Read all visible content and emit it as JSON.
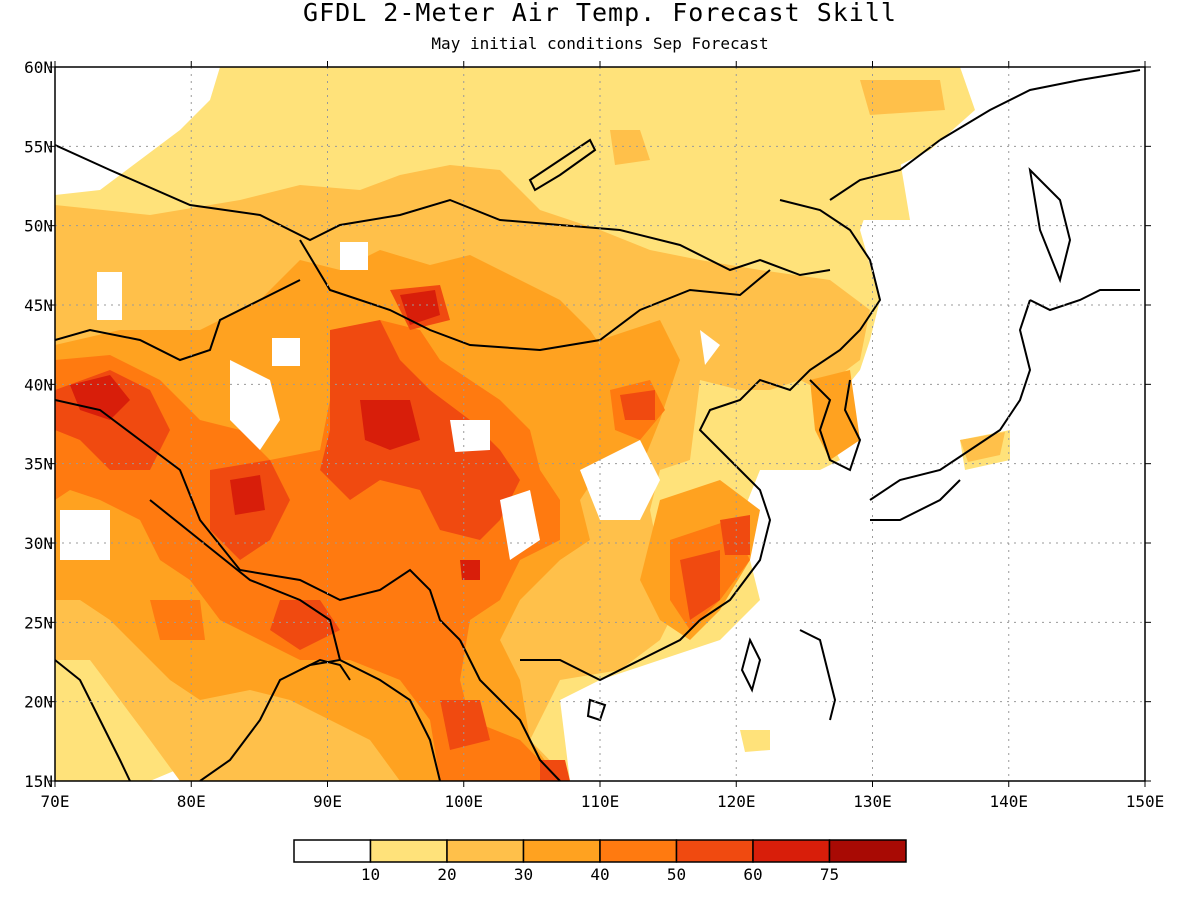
{
  "title": "GFDL 2-Meter Air Temp. Forecast Skill",
  "subtitle": "May initial conditions  Sep Forecast",
  "map": {
    "lon_range": [
      70,
      150
    ],
    "lat_range": [
      15,
      60
    ],
    "lon_ticks": [
      "70E",
      "80E",
      "90E",
      "100E",
      "110E",
      "120E",
      "130E",
      "140E",
      "150E"
    ],
    "lat_ticks": [
      "15N",
      "20N",
      "25N",
      "30N",
      "35N",
      "40N",
      "45N",
      "50N",
      "55N",
      "60N"
    ],
    "gridlines": "dotted"
  },
  "colorbar": {
    "colors": [
      "#ffffff",
      "#ffe27a",
      "#ffc04a",
      "#ffa220",
      "#ff7a10",
      "#f04a10",
      "#d81e0a",
      "#a80a04"
    ],
    "labels": [
      "10",
      "20",
      "30",
      "40",
      "50",
      "60",
      "75"
    ]
  },
  "colors": {
    "land_outline": "#000000",
    "grid": "#9a9a9a"
  }
}
